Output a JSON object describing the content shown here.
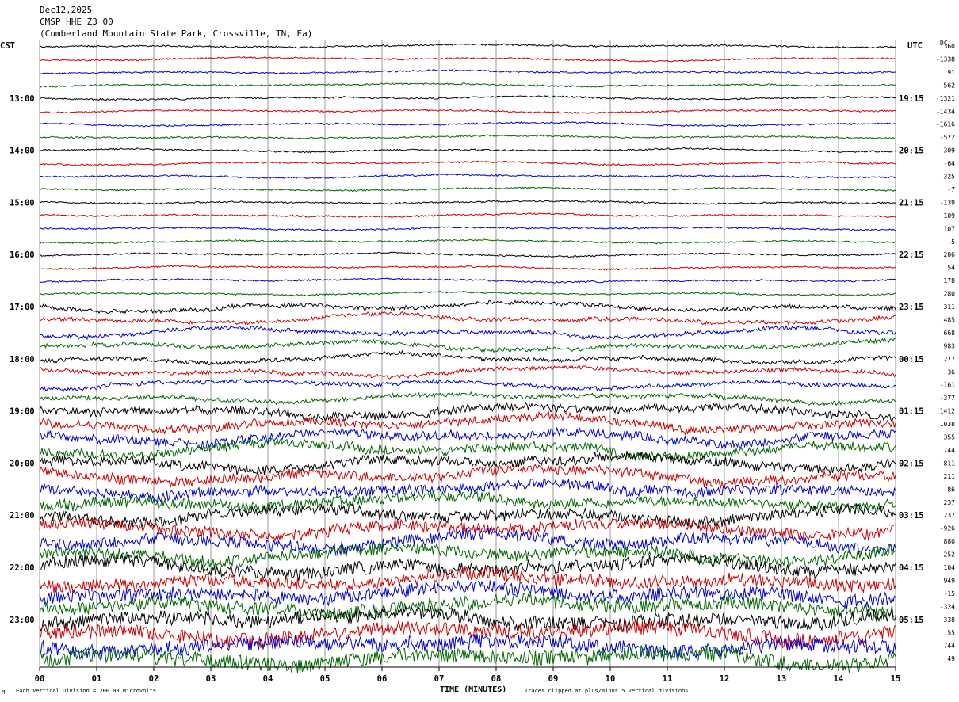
{
  "header": {
    "date": "Dec12,2025",
    "channel": "CMSP HHE Z3 00",
    "station": "(Cumberland Mountain State Park, Crossville, TN, Ea)"
  },
  "left_tz": "CST",
  "right_tz": "UTC",
  "dc_label": "DC",
  "footer": {
    "scale_note": "Each Vertical Division =  200.00 microvolts",
    "clip_note": "Traces clipped at plus/minus 5 vertical divisions",
    "corner_mark": "M"
  },
  "colors": {
    "cycle": [
      "#000000",
      "#cc0000",
      "#0000cc",
      "#006600"
    ],
    "grid": "#808080"
  },
  "chart_data": {
    "type": "line",
    "subtype": "helicorder",
    "xlabel": "TIME (MINUTES)",
    "x_ticks": [
      "00",
      "01",
      "02",
      "03",
      "04",
      "05",
      "06",
      "07",
      "08",
      "09",
      "10",
      "11",
      "12",
      "13",
      "14",
      "15"
    ],
    "xlim": [
      0,
      15
    ],
    "minutes_per_line": 15,
    "line_count": 48,
    "left_hour_labels": [
      "13:00",
      "14:00",
      "15:00",
      "16:00",
      "17:00",
      "18:00",
      "19:00",
      "20:00",
      "21:00",
      "22:00",
      "23:00"
    ],
    "right_hour_labels": [
      "19:15",
      "20:15",
      "21:15",
      "22:15",
      "23:15",
      "00:15",
      "01:15",
      "02:15",
      "03:15",
      "04:15",
      "05:15"
    ],
    "first_label_line": 4,
    "dc_offsets": [
      360,
      -1338,
      91,
      -562,
      -1321,
      -1434,
      -1616,
      -572,
      -309,
      -64,
      -325,
      -7,
      -139,
      109,
      107,
      -5,
      206,
      54,
      178,
      280,
      311,
      485,
      668,
      983,
      277,
      36,
      -161,
      -377,
      1412,
      1038,
      355,
      744,
      -811,
      211,
      86,
      237,
      237,
      -926,
      880,
      252,
      104,
      949,
      -15,
      -324,
      338,
      55,
      744,
      49
    ],
    "units": "microvolts",
    "microvolts_per_division": 200.0,
    "clip_divisions": 5,
    "grid": true
  }
}
